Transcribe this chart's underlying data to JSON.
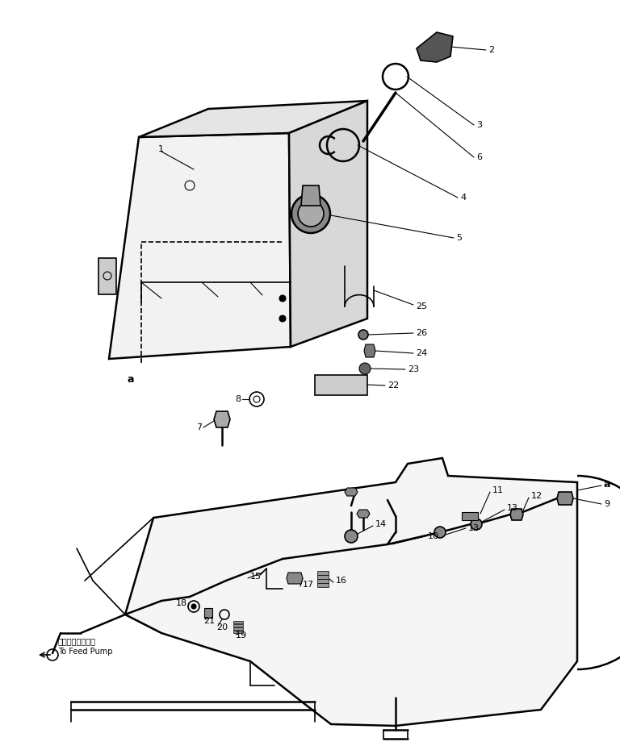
{
  "bg_color": "#ffffff",
  "line_color": "#000000",
  "fig_width": 7.68,
  "fig_height": 9.3,
  "dpi": 100,
  "lw_thin": 0.8,
  "lw_med": 1.2,
  "lw_thick": 1.8,
  "lw_bold": 2.5,
  "label_fs": 8,
  "japanese_text": "フィードポンプへ",
  "english_text": "To Feed Pump"
}
